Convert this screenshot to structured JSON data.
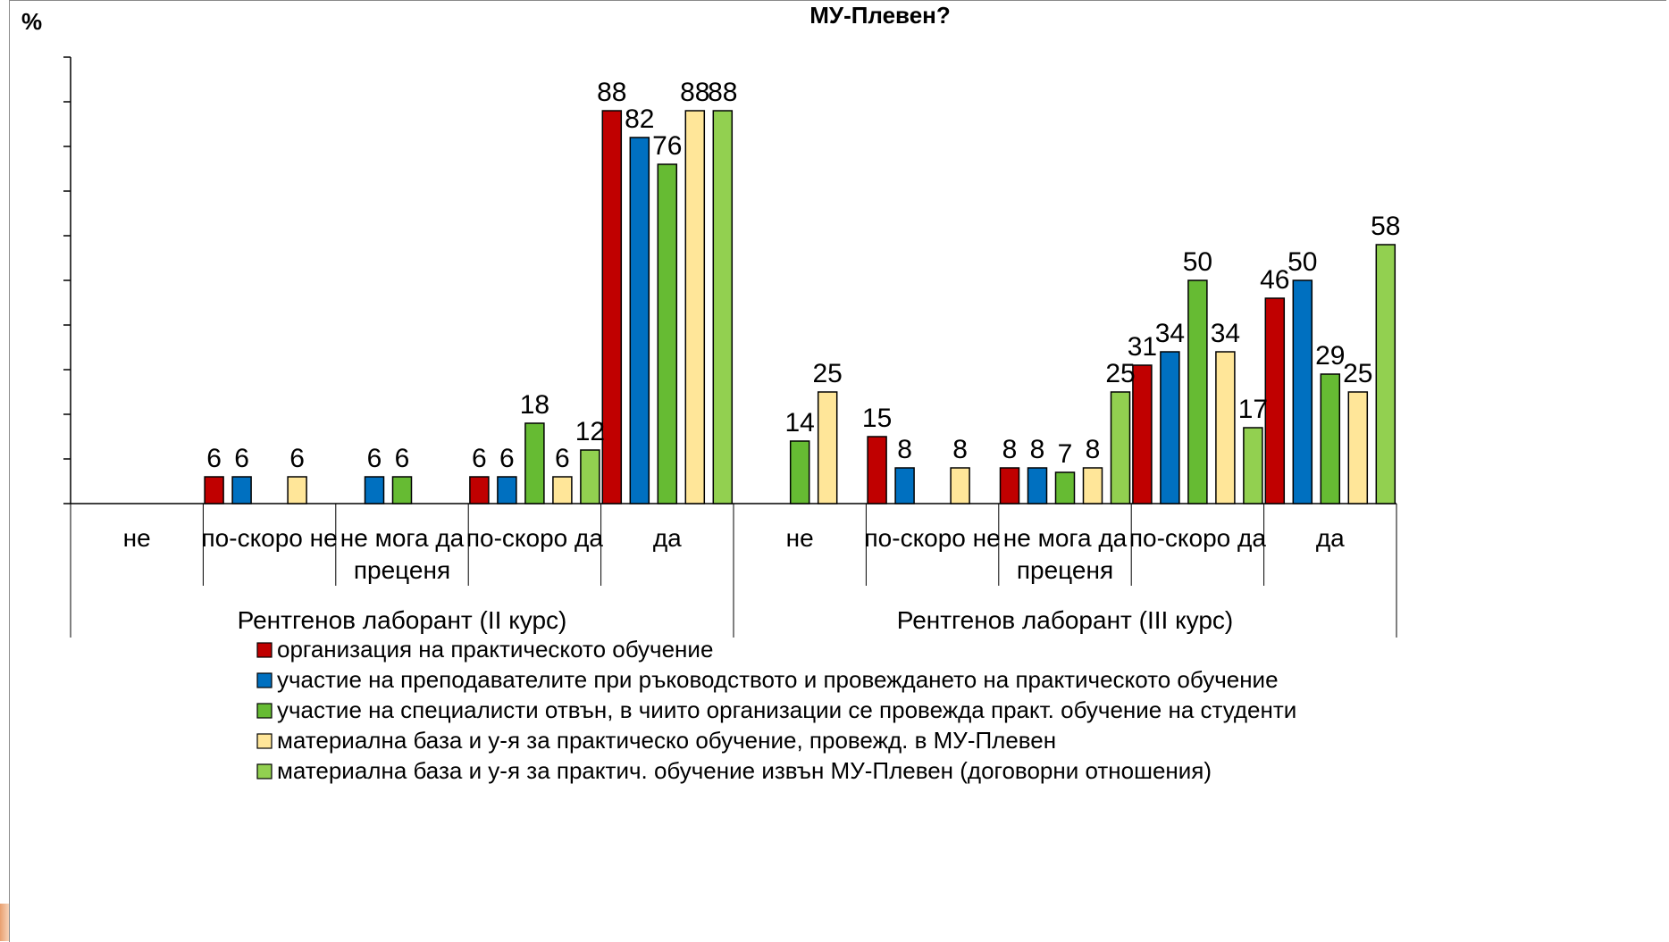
{
  "chart_data": {
    "type": "bar",
    "title": "МУ-Плевен?",
    "ylabel": "%",
    "ylim": [
      0,
      100
    ],
    "yticks": [
      "0",
      "10",
      "20",
      "30",
      "40",
      "50",
      "60",
      "70",
      "80",
      "90",
      "100"
    ],
    "grid": false,
    "legend_position": "bottom",
    "groups": [
      {
        "label": "Рентгенов лаборант (II курс)",
        "categories": [
          "не",
          "по-скоро не",
          "не мога да преценя",
          "по-скоро да",
          "да"
        ]
      },
      {
        "label": "Рентгенов лаборант (III курс)",
        "categories": [
          "не",
          "по-скоро не",
          "не мога да преценя",
          "по-скоро да",
          "да"
        ]
      }
    ],
    "series": [
      {
        "name": "организация на практическото обучение",
        "color": "#c00000",
        "values": [
          null,
          6,
          null,
          6,
          88,
          null,
          15,
          8,
          31,
          46
        ]
      },
      {
        "name": "участие на  преподавателите при ръководството и провеждането на практическото обучение",
        "color": "#0070c0",
        "values": [
          null,
          6,
          6,
          6,
          82,
          null,
          8,
          8,
          34,
          50
        ]
      },
      {
        "name": "участие на специалисти отвън, в чиито организации се провежда практ. обучение на студенти",
        "color": "#66bb33",
        "values": [
          null,
          null,
          6,
          18,
          76,
          14,
          null,
          7,
          50,
          29
        ]
      },
      {
        "name": "материална база и у-я за практическо обучение, провежд. в МУ-Плевен",
        "color": "#ffe699",
        "values": [
          null,
          6,
          null,
          6,
          88,
          25,
          8,
          8,
          34,
          25
        ]
      },
      {
        "name": "материална база и у-я за практич. обучение извън МУ-Плевен (договорни отношения)",
        "color": "#92d050",
        "values": [
          null,
          null,
          null,
          12,
          88,
          null,
          null,
          25,
          17,
          58
        ]
      }
    ]
  }
}
